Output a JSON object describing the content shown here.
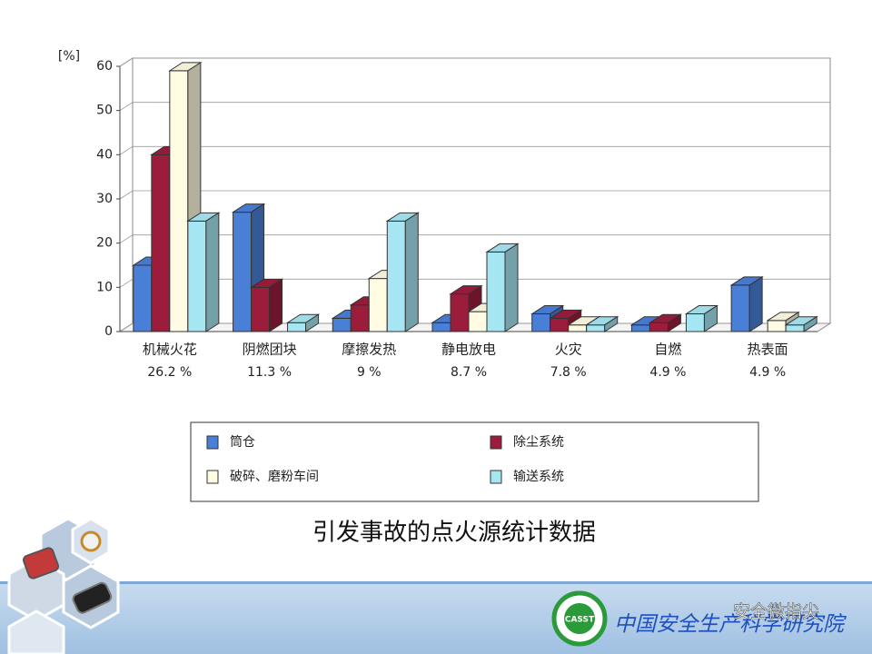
{
  "chart_data": {
    "type": "bar3d",
    "y_label": "[%]",
    "categories": [
      "机械火花",
      "阴燃团块",
      "摩擦发热",
      "静电放电",
      "火灾",
      "自燃",
      "热表面"
    ],
    "category_subtitles": [
      "26.2 %",
      "11.3 %",
      "9 %",
      "8.7 %",
      "7.8 %",
      "4.9 %",
      "4.9 %"
    ],
    "series": [
      {
        "name": "筒仓",
        "color": "#4a7fd8",
        "values": [
          15,
          27,
          3,
          2,
          4,
          1.5,
          10.5
        ]
      },
      {
        "name": "除尘系统",
        "color": "#9c1c3c",
        "values": [
          40,
          10,
          6,
          8.5,
          3,
          2,
          null
        ]
      },
      {
        "name": "破碎、磨粉车间",
        "color": "#fffbe2",
        "values": [
          59,
          null,
          12,
          4.5,
          1.5,
          null,
          2.5
        ]
      },
      {
        "name": "输送系统",
        "color": "#a6e6f2",
        "values": [
          25,
          2,
          25,
          18,
          1.5,
          4,
          1.5
        ]
      }
    ],
    "ylim": [
      0,
      60
    ],
    "yticks": [
      0,
      10,
      20,
      30,
      40,
      50,
      60
    ],
    "grid": true
  },
  "caption": "引发事故的点火源统计数据",
  "footer": {
    "logo": "CASST",
    "org": "中国安全生产科学研究院",
    "watermark": "安全微指尖"
  }
}
